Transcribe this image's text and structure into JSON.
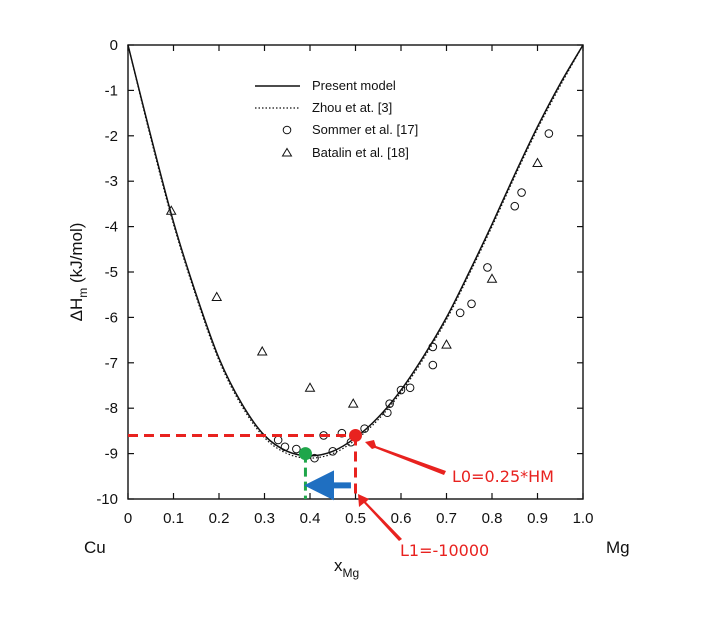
{
  "chart_data": {
    "type": "scatter",
    "xlabel": "x",
    "xlabel_sub": "Mg",
    "ylabel_main": "ΔH",
    "ylabel_sub": "m",
    "ylabel_unit": " (kJ/mol)",
    "x_end_left": "Cu",
    "x_end_right": "Mg",
    "xlim": [
      0,
      1.0
    ],
    "ylim": [
      -10,
      0
    ],
    "x_ticks": [
      0,
      0.1,
      0.2,
      0.3,
      0.4,
      0.5,
      0.6,
      0.7,
      0.8,
      0.9,
      1.0
    ],
    "x_tick_labels": [
      "0",
      "0.1",
      "0.2",
      "0.3",
      "0.4",
      "0.5",
      "0.6",
      "0.7",
      "0.8",
      "0.9",
      "1.0"
    ],
    "y_ticks": [
      0,
      -1,
      -2,
      -3,
      -4,
      -5,
      -6,
      -7,
      -8,
      -9,
      -10
    ],
    "y_tick_labels": [
      "0",
      "-1",
      "-2",
      "-3",
      "-4",
      "-5",
      "-6",
      "-7",
      "-8",
      "-9",
      "-10"
    ],
    "legend_placement": "top-center",
    "series": [
      {
        "name": "Present model",
        "style": "solid-line",
        "x": [
          0,
          0.05,
          0.1,
          0.15,
          0.2,
          0.25,
          0.3,
          0.35,
          0.4,
          0.45,
          0.5,
          0.55,
          0.6,
          0.65,
          0.7,
          0.75,
          0.8,
          0.85,
          0.9,
          0.95,
          1.0
        ],
        "y": [
          0,
          -2.0,
          -3.9,
          -5.5,
          -6.9,
          -7.9,
          -8.6,
          -8.95,
          -9.05,
          -8.95,
          -8.65,
          -8.2,
          -7.6,
          -6.85,
          -6.0,
          -5.0,
          -3.95,
          -2.85,
          -1.8,
          -0.85,
          0
        ]
      },
      {
        "name": "Zhou et at. [3]",
        "style": "dotted-line",
        "x": [
          0,
          0.05,
          0.1,
          0.15,
          0.2,
          0.25,
          0.3,
          0.35,
          0.4,
          0.45,
          0.5,
          0.55,
          0.6,
          0.65,
          0.7,
          0.75,
          0.8,
          0.85,
          0.9,
          0.95,
          1.0
        ],
        "y": [
          0,
          -2.05,
          -3.95,
          -5.55,
          -6.95,
          -7.95,
          -8.65,
          -9.0,
          -9.1,
          -9.0,
          -8.7,
          -8.25,
          -7.65,
          -6.9,
          -6.05,
          -5.05,
          -4.0,
          -2.9,
          -1.85,
          -0.9,
          0
        ]
      },
      {
        "name": "Sommer et al. [17]",
        "style": "open-circle",
        "x": [
          0.33,
          0.345,
          0.37,
          0.41,
          0.43,
          0.45,
          0.47,
          0.49,
          0.52,
          0.57,
          0.575,
          0.6,
          0.62,
          0.67,
          0.67,
          0.73,
          0.755,
          0.79,
          0.85,
          0.865,
          0.925
        ],
        "y": [
          -8.7,
          -8.85,
          -8.9,
          -9.1,
          -8.6,
          -8.95,
          -8.55,
          -8.75,
          -8.45,
          -8.1,
          -7.9,
          -7.6,
          -7.55,
          -7.05,
          -6.65,
          -5.9,
          -5.7,
          -4.9,
          -3.55,
          -3.25,
          -1.95
        ]
      },
      {
        "name": "Batalin et al. [18]",
        "style": "open-triangle",
        "x": [
          0.095,
          0.195,
          0.295,
          0.4,
          0.495,
          0.7,
          0.8,
          0.9
        ],
        "y": [
          -3.65,
          -5.55,
          -6.75,
          -7.55,
          -7.9,
          -6.6,
          -5.15,
          -2.6
        ]
      }
    ],
    "annotations": {
      "point_red": {
        "x": 0.5,
        "y": -8.6,
        "color": "#e8221f"
      },
      "point_green": {
        "x": 0.39,
        "y": -9.0,
        "color": "#1fa64a"
      },
      "arrow_blue": {
        "from_x": 0.49,
        "to_x": 0.4,
        "y": -9.7,
        "color": "#1f6fc1"
      },
      "label_l0": {
        "text": "L0=0.25*HM",
        "color": "#e8221f"
      },
      "label_l1": {
        "text": "L1=-10000",
        "color": "#e8221f"
      }
    }
  }
}
